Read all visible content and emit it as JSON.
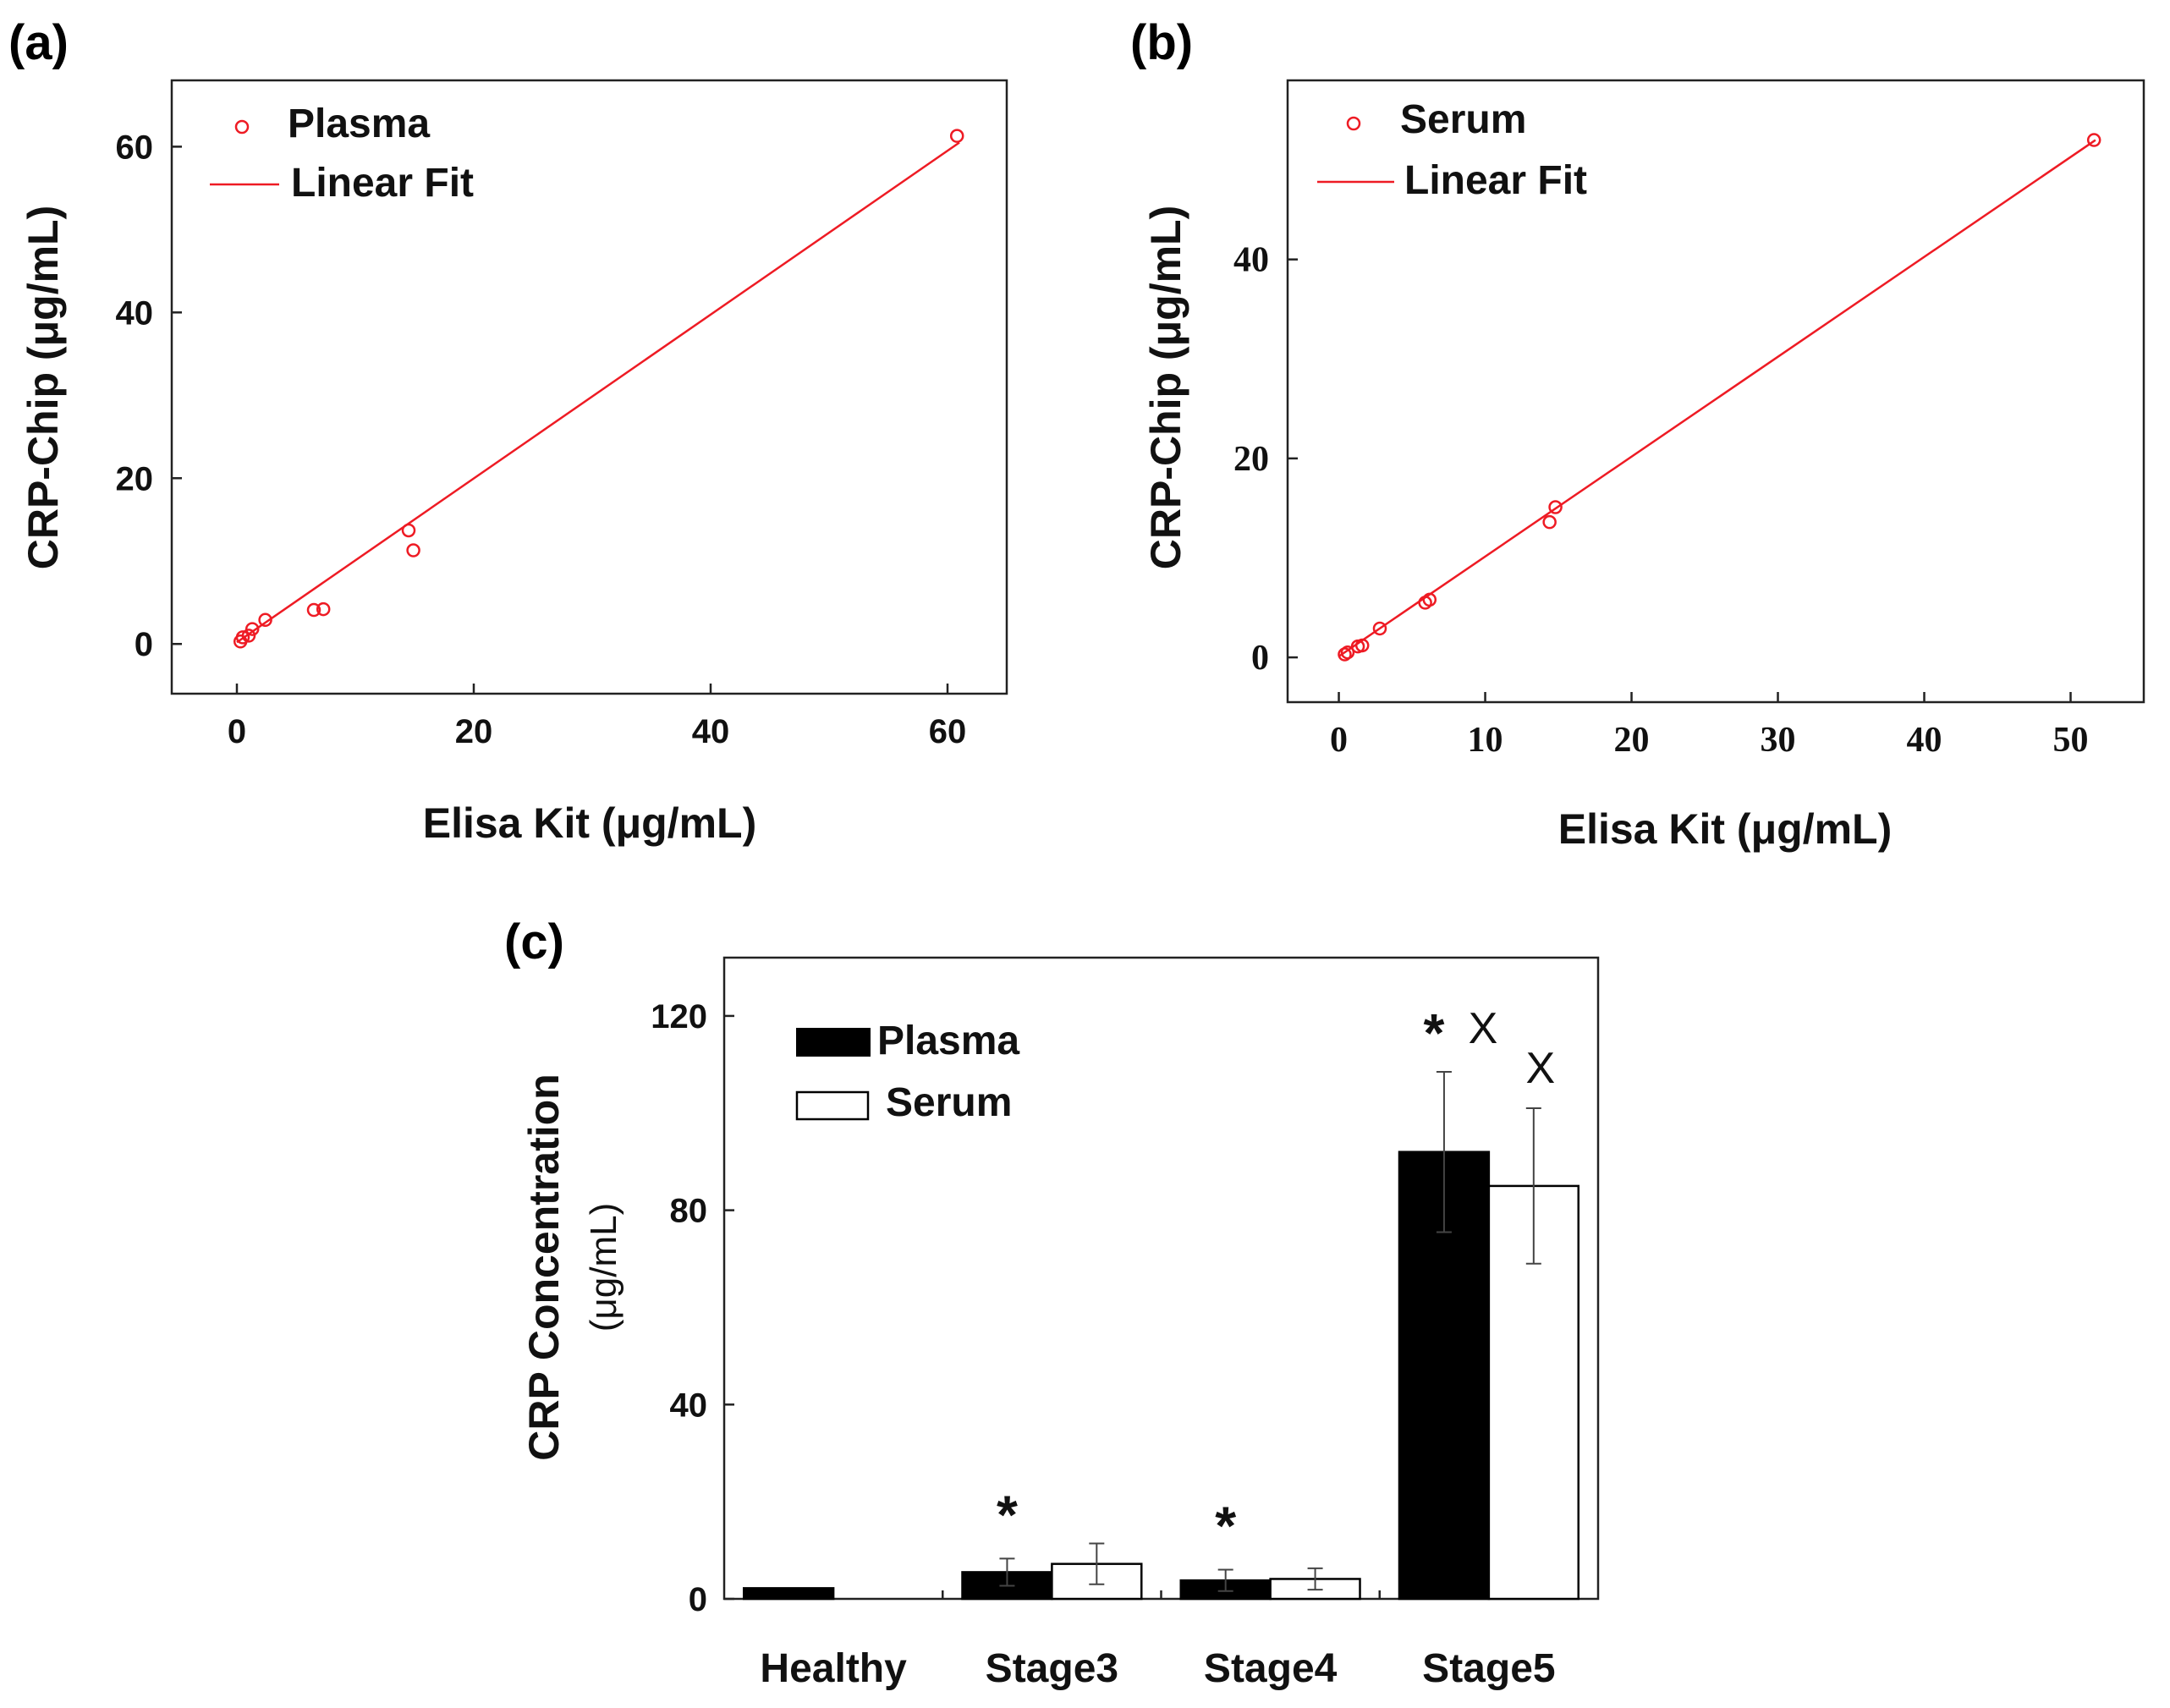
{
  "chart_data": [
    {
      "panel": "(a)",
      "type": "scatter",
      "xlabel": "Elisa Kit (μg/mL)",
      "ylabel": "CRP-Chip (μg/mL)",
      "xlim": [
        -5.5,
        65
      ],
      "ylim": [
        -6,
        68
      ],
      "xticks": [
        0,
        20,
        40,
        60
      ],
      "yticks": [
        0,
        20,
        40,
        60
      ],
      "xtick_labels": [
        "0",
        "20",
        "40",
        "60"
      ],
      "ytick_labels": [
        "0",
        "20",
        "40",
        "60"
      ],
      "legend": {
        "placement": "top-left",
        "entries": [
          "Plasma",
          "Linear Fit"
        ]
      },
      "series": [
        {
          "name": "Plasma",
          "marker": "open-circle",
          "color": "#ee1b24",
          "points": [
            [
              0.3,
              0.3
            ],
            [
              0.5,
              0.8
            ],
            [
              1.0,
              1.0
            ],
            [
              1.3,
              1.8
            ],
            [
              2.4,
              2.9
            ],
            [
              6.5,
              4.1
            ],
            [
              7.3,
              4.2
            ],
            [
              14.5,
              13.7
            ],
            [
              14.9,
              11.3
            ],
            [
              60.8,
              61.3
            ]
          ]
        },
        {
          "name": "Linear Fit",
          "type": "line",
          "color": "#ee1b24",
          "points": [
            [
              0,
              0.2
            ],
            [
              61.0,
              60.5
            ]
          ]
        }
      ]
    },
    {
      "panel": "(b)",
      "type": "scatter",
      "xlabel": "Elisa Kit (μg/mL)",
      "ylabel": "CRP-Chip (μg/mL)",
      "xlim": [
        -3.5,
        55
      ],
      "ylim": [
        -4.5,
        58
      ],
      "xticks": [
        0,
        10,
        20,
        30,
        40,
        50
      ],
      "yticks": [
        0,
        20,
        40
      ],
      "xtick_labels": [
        "0",
        "10",
        "20",
        "30",
        "40",
        "50"
      ],
      "ytick_labels": [
        "0",
        "20",
        "40"
      ],
      "legend": {
        "placement": "top-left",
        "entries": [
          "Serum",
          "Linear Fit"
        ]
      },
      "series": [
        {
          "name": "Serum",
          "marker": "open-circle",
          "color": "#ee1b24",
          "points": [
            [
              0.4,
              0.3
            ],
            [
              0.6,
              0.5
            ],
            [
              1.3,
              1.1
            ],
            [
              1.6,
              1.2
            ],
            [
              2.8,
              2.9
            ],
            [
              5.9,
              5.5
            ],
            [
              6.2,
              5.8
            ],
            [
              14.4,
              13.6
            ],
            [
              14.8,
              15.1
            ],
            [
              51.6,
              52.0
            ]
          ]
        },
        {
          "name": "Linear Fit",
          "type": "line",
          "color": "#ee1b24",
          "points": [
            [
              0,
              0.1
            ],
            [
              51.7,
              52.0
            ]
          ]
        }
      ]
    },
    {
      "panel": "(c)",
      "type": "bar",
      "ylabel_line1": "CRP Concentration",
      "ylabel_line2": "(μg/mL)",
      "categories": [
        "Healthy",
        "Stage3",
        "Stage4",
        "Stage5"
      ],
      "ylim": [
        0,
        132
      ],
      "yticks": [
        0,
        40,
        80,
        120
      ],
      "ytick_labels": [
        "0",
        "40",
        "80",
        "120"
      ],
      "legend": {
        "placement": "top-left",
        "entries": [
          "Plasma",
          "Serum"
        ]
      },
      "series": [
        {
          "name": "Plasma",
          "fill": "#000000",
          "values": [
            2.2,
            5.5,
            3.8,
            92.0
          ],
          "errors": [
            0,
            2.8,
            2.2,
            16.5
          ]
        },
        {
          "name": "Serum",
          "fill": "#ffffff",
          "values": [
            0,
            7.2,
            4.1,
            85.0
          ],
          "errors": [
            0,
            4.2,
            2.2,
            16.0
          ]
        }
      ],
      "annotations": [
        {
          "category": "Stage3",
          "series": "Plasma",
          "text": "*"
        },
        {
          "category": "Stage4",
          "series": "Plasma",
          "text": "*"
        },
        {
          "category": "Stage5",
          "series": "Plasma",
          "text": "* X"
        },
        {
          "category": "Stage5",
          "series": "Serum",
          "text": "X"
        }
      ]
    }
  ]
}
